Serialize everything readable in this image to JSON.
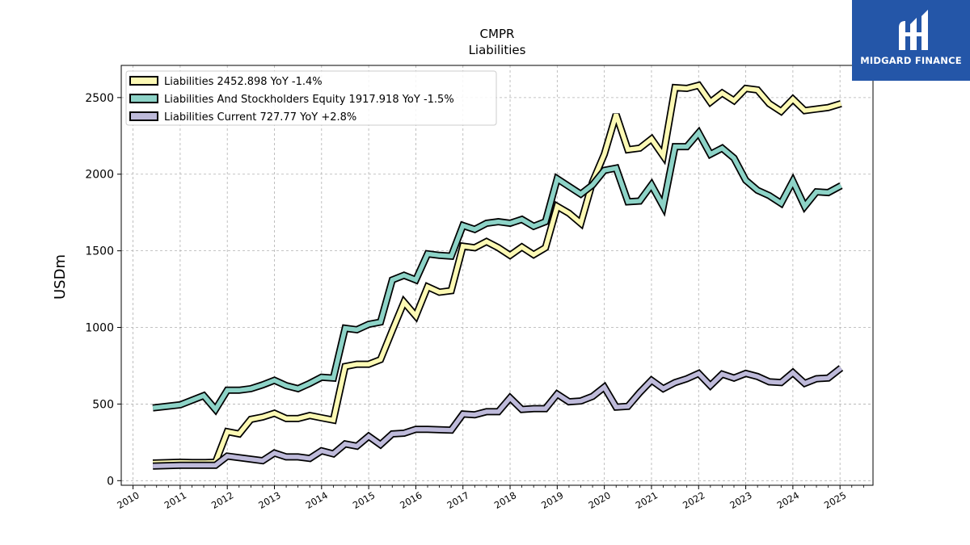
{
  "brand": {
    "name": "MIDGARD FINANCE",
    "bg_color": "#2456a8"
  },
  "chart_data": {
    "type": "line",
    "title": "CMPR",
    "subtitle": "Liabilities",
    "ylabel": "USDm",
    "xlabel": "",
    "xlim": [
      2009.75,
      2025.7
    ],
    "ylim": [
      -30,
      2710
    ],
    "yticks": [
      0,
      500,
      1000,
      1500,
      2000,
      2500
    ],
    "xticks": [
      "2010",
      "2011",
      "2012",
      "2013",
      "2014",
      "2015",
      "2016",
      "2017",
      "2018",
      "2019",
      "2020",
      "2021",
      "2022",
      "2023",
      "2024",
      "2025"
    ],
    "grid": true,
    "legend_position": "top-left",
    "series": [
      {
        "name": "Liabilities",
        "legend": "Liabilities  2452.898 YoY -1.4%",
        "color": "#fcf9b4",
        "x": [
          2010.42,
          2011.0,
          2011.25,
          2011.5,
          2011.75,
          2012.0,
          2012.25,
          2012.5,
          2012.75,
          2013.0,
          2013.25,
          2013.5,
          2013.75,
          2014.0,
          2014.25,
          2014.5,
          2014.75,
          2015.0,
          2015.25,
          2015.5,
          2015.75,
          2016.0,
          2016.25,
          2016.5,
          2016.75,
          2017.0,
          2017.25,
          2017.5,
          2017.75,
          2018.0,
          2018.25,
          2018.5,
          2018.75,
          2019.0,
          2019.25,
          2019.5,
          2019.75,
          2020.0,
          2020.25,
          2020.5,
          2020.75,
          2021.0,
          2021.25,
          2021.5,
          2021.75,
          2022.0,
          2022.25,
          2022.5,
          2022.75,
          2023.0,
          2023.25,
          2023.5,
          2023.75,
          2024.0,
          2024.25,
          2024.5,
          2024.75,
          2025.02
        ],
        "y": [
          115,
          120,
          118,
          118,
          120,
          320,
          305,
          400,
          415,
          440,
          405,
          405,
          425,
          410,
          395,
          745,
          760,
          760,
          790,
          980,
          1165,
          1075,
          1265,
          1230,
          1240,
          1530,
          1520,
          1560,
          1520,
          1470,
          1525,
          1475,
          1520,
          1790,
          1745,
          1680,
          1950,
          2130,
          2390,
          2160,
          2170,
          2230,
          2120,
          2565,
          2560,
          2580,
          2470,
          2530,
          2480,
          2560,
          2550,
          2460,
          2410,
          2490,
          2415,
          2425,
          2435,
          2460
        ]
      },
      {
        "name": "Liabilities And Stockholders Equity",
        "legend": "Liabilities And Stockholders Equity  1917.918 YoY -1.5%",
        "color": "#8dd3c7",
        "x": [
          2010.42,
          2011.0,
          2011.25,
          2011.5,
          2011.75,
          2012.0,
          2012.25,
          2012.5,
          2012.75,
          2013.0,
          2013.25,
          2013.5,
          2013.75,
          2014.0,
          2014.25,
          2014.5,
          2014.75,
          2015.0,
          2015.25,
          2015.5,
          2015.75,
          2016.0,
          2016.25,
          2016.5,
          2016.75,
          2017.0,
          2017.25,
          2017.5,
          2017.75,
          2018.0,
          2018.25,
          2018.5,
          2018.75,
          2019.0,
          2019.25,
          2019.5,
          2019.75,
          2020.0,
          2020.25,
          2020.5,
          2020.75,
          2021.0,
          2021.25,
          2021.5,
          2021.75,
          2022.0,
          2022.25,
          2022.5,
          2022.75,
          2023.0,
          2023.25,
          2023.5,
          2023.75,
          2024.0,
          2024.25,
          2024.5,
          2024.75,
          2025.02
        ],
        "y": [
          475,
          495,
          525,
          555,
          465,
          590,
          590,
          600,
          625,
          655,
          620,
          600,
          635,
          675,
          670,
          995,
          985,
          1020,
          1035,
          1310,
          1340,
          1310,
          1480,
          1470,
          1465,
          1665,
          1640,
          1680,
          1690,
          1680,
          1705,
          1660,
          1690,
          1970,
          1920,
          1870,
          1930,
          2025,
          2040,
          1820,
          1825,
          1930,
          1790,
          2180,
          2180,
          2270,
          2130,
          2170,
          2105,
          1960,
          1895,
          1860,
          1810,
          1955,
          1790,
          1885,
          1880,
          1925
        ]
      },
      {
        "name": "Liabilities Current",
        "legend": "Liabilities Current  727.77 YoY +2.8%",
        "color": "#bebada",
        "x": [
          2010.42,
          2011.0,
          2011.25,
          2011.5,
          2011.75,
          2012.0,
          2012.25,
          2012.5,
          2012.75,
          2013.0,
          2013.25,
          2013.5,
          2013.75,
          2014.0,
          2014.25,
          2014.5,
          2014.75,
          2015.0,
          2015.25,
          2015.5,
          2015.75,
          2016.0,
          2016.25,
          2016.5,
          2016.75,
          2017.0,
          2017.25,
          2017.5,
          2017.75,
          2018.0,
          2018.25,
          2018.5,
          2018.75,
          2019.0,
          2019.25,
          2019.5,
          2019.75,
          2020.0,
          2020.25,
          2020.5,
          2020.75,
          2021.0,
          2021.25,
          2021.5,
          2021.75,
          2022.0,
          2022.25,
          2022.5,
          2022.75,
          2023.0,
          2023.25,
          2023.5,
          2023.75,
          2024.0,
          2024.25,
          2024.5,
          2024.75,
          2025.02
        ],
        "y": [
          95,
          100,
          100,
          100,
          100,
          160,
          150,
          140,
          130,
          180,
          155,
          155,
          145,
          195,
          175,
          240,
          225,
          290,
          235,
          305,
          310,
          335,
          335,
          332,
          330,
          435,
          430,
          450,
          450,
          540,
          465,
          470,
          470,
          565,
          515,
          520,
          550,
          610,
          480,
          485,
          575,
          655,
          600,
          640,
          665,
          700,
          620,
          695,
          670,
          700,
          680,
          645,
          640,
          705,
          635,
          665,
          670,
          735
        ]
      }
    ]
  }
}
